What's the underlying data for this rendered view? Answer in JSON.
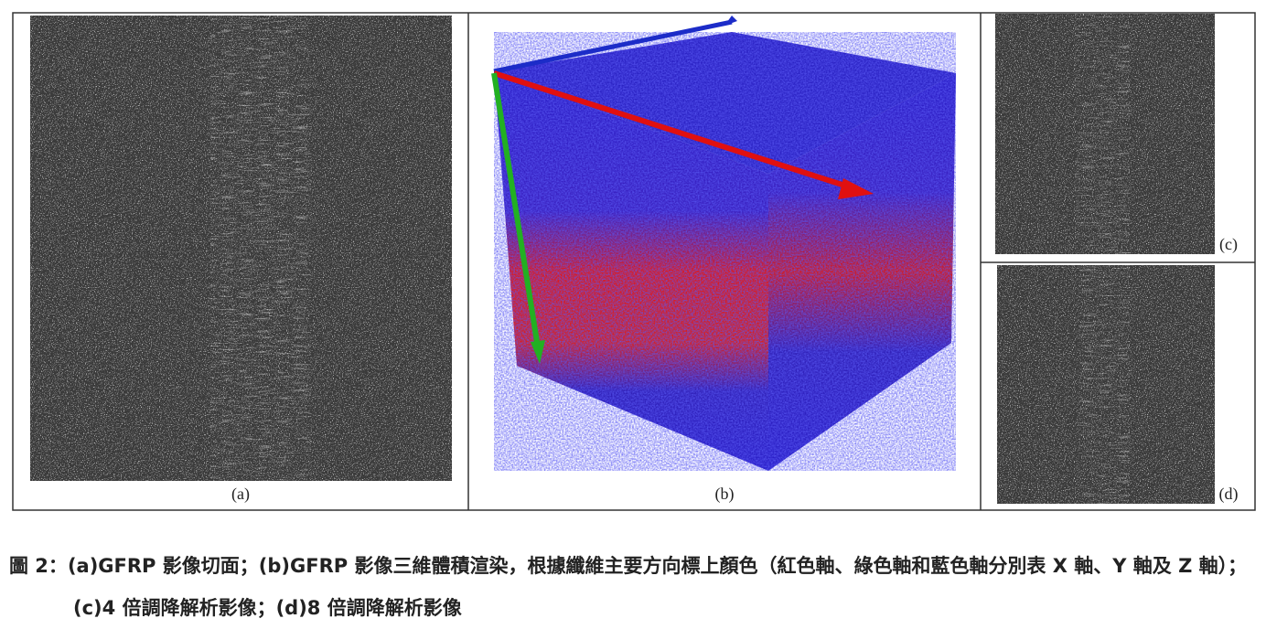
{
  "figure": {
    "panels": [
      {
        "label": "(a)"
      },
      {
        "label": "(b)"
      },
      {
        "label": "(c)"
      },
      {
        "label": "(d)"
      }
    ],
    "caption": {
      "label": "圖 2：",
      "text": "(a)GFRP 影像切面；(b)GFRP 影像三維體積渲染，根據纖維主要方向標上顏色（紅色軸、綠色軸和藍色軸分別表 X 軸、Y 軸及 Z 軸）；(c)4 倍調降解析影像；(d)8 倍調降解析影像"
    }
  }
}
